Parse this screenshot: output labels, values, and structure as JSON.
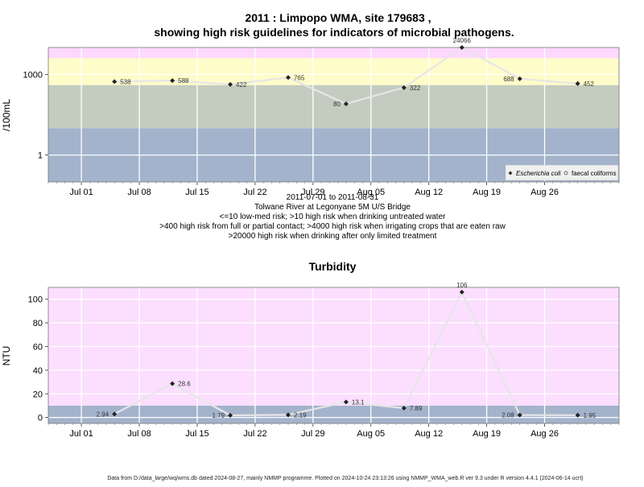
{
  "chart_data": [
    {
      "type": "line",
      "title": "2011 : Limpopo WMA, site 179683 ,",
      "subtitle": "showing high risk guidelines for indicators of microbial pathogens.",
      "ylabel": "/100mL",
      "yscale": "log",
      "ylim": [
        0.1,
        10000
      ],
      "yticks": [
        {
          "value": 1,
          "label": "1"
        },
        {
          "value": 1000,
          "label": "1000"
        }
      ],
      "xlim": [
        "2011-06-27",
        "2011-09-04"
      ],
      "xticks": [
        "Jul 01",
        "Jul 08",
        "Jul 15",
        "Jul 22",
        "Jul 29",
        "Aug 05",
        "Aug 12",
        "Aug 19",
        "Aug 26"
      ],
      "xtick_dates": [
        "2011-07-01",
        "2011-07-08",
        "2011-07-15",
        "2011-07-22",
        "2011-07-29",
        "2011-08-05",
        "2011-08-12",
        "2011-08-19",
        "2011-08-26"
      ],
      "bands": [
        {
          "from": 0.1,
          "to": 10,
          "color": "#a3b3cc"
        },
        {
          "from": 10,
          "to": 400,
          "color": "#c4ccc0"
        },
        {
          "from": 400,
          "to": 4000,
          "color": "#fefcc8"
        },
        {
          "from": 4000,
          "to": 20000,
          "color": "#fcd8ff"
        },
        {
          "from": 20000,
          "to": 1000000,
          "color": "#ffb8c4"
        }
      ],
      "series": [
        {
          "name": "Escherichia coli",
          "x": [
            "2011-07-05",
            "2011-07-12",
            "2011-07-19",
            "2011-07-26",
            "2011-08-02",
            "2011-08-09",
            "2011-08-16",
            "2011-08-23",
            "2011-08-30"
          ],
          "values": [
            538,
            588,
            422,
            765,
            80,
            322,
            24066,
            688,
            452
          ],
          "labels": [
            "538",
            "588",
            "422",
            "765",
            "80",
            "322",
            "24066",
            "688",
            "452"
          ]
        }
      ],
      "legend": {
        "position": "bottom-right",
        "entries": [
          "Escherichia coli",
          "faecal coliforms"
        ]
      },
      "caption": [
        "2011-07-01 to 2011-08-31",
        "Tolwane River at Legonyane 5M U/S Bridge",
        "<=10 low-med risk; >10 high risk when drinking untreated water",
        ">400 high risk from full or partial contact; >4000 high risk when irrigating crops that are eaten raw",
        ">20000 high risk when drinking after only limited treatment"
      ]
    },
    {
      "type": "line",
      "title": "Turbidity",
      "ylabel": "NTU",
      "ylim": [
        -5,
        110
      ],
      "yticks": [
        {
          "value": 0,
          "label": "0"
        },
        {
          "value": 20,
          "label": "20"
        },
        {
          "value": 40,
          "label": "40"
        },
        {
          "value": 60,
          "label": "60"
        },
        {
          "value": 80,
          "label": "80"
        },
        {
          "value": 100,
          "label": "100"
        }
      ],
      "xlim": [
        "2011-06-27",
        "2011-09-04"
      ],
      "xticks": [
        "Jul 01",
        "Jul 08",
        "Jul 15",
        "Jul 22",
        "Jul 29",
        "Aug 05",
        "Aug 12",
        "Aug 19",
        "Aug 26"
      ],
      "xtick_dates": [
        "2011-07-01",
        "2011-07-08",
        "2011-07-15",
        "2011-07-22",
        "2011-07-29",
        "2011-08-05",
        "2011-08-12",
        "2011-08-19",
        "2011-08-26"
      ],
      "bands": [
        {
          "from": -5,
          "to": 10,
          "color": "#a3b3cc"
        },
        {
          "from": 10,
          "to": 110,
          "color": "#fcdeff"
        }
      ],
      "series": [
        {
          "x": [
            "2011-07-05",
            "2011-07-12",
            "2011-07-19",
            "2011-07-26",
            "2011-08-02",
            "2011-08-09",
            "2011-08-16",
            "2011-08-23",
            "2011-08-30"
          ],
          "values": [
            2.94,
            28.6,
            1.79,
            2.19,
            13.1,
            7.89,
            106,
            2.08,
            1.95
          ],
          "labels": [
            "2.94",
            "28.6",
            "1.79",
            "2.19",
            "13.1",
            "7.89",
            "106",
            "2.08",
            "1.95"
          ]
        }
      ]
    }
  ],
  "footer": "Data from D:/data_large/wq/wms.db dated 2024-08-27, mainly NMMP programme. Plotted on 2024-10-24 23:13:26 using NMMP_WMA_web.R ver 9.3 under R version 4.4.1 (2024-06-14 ucrt)"
}
